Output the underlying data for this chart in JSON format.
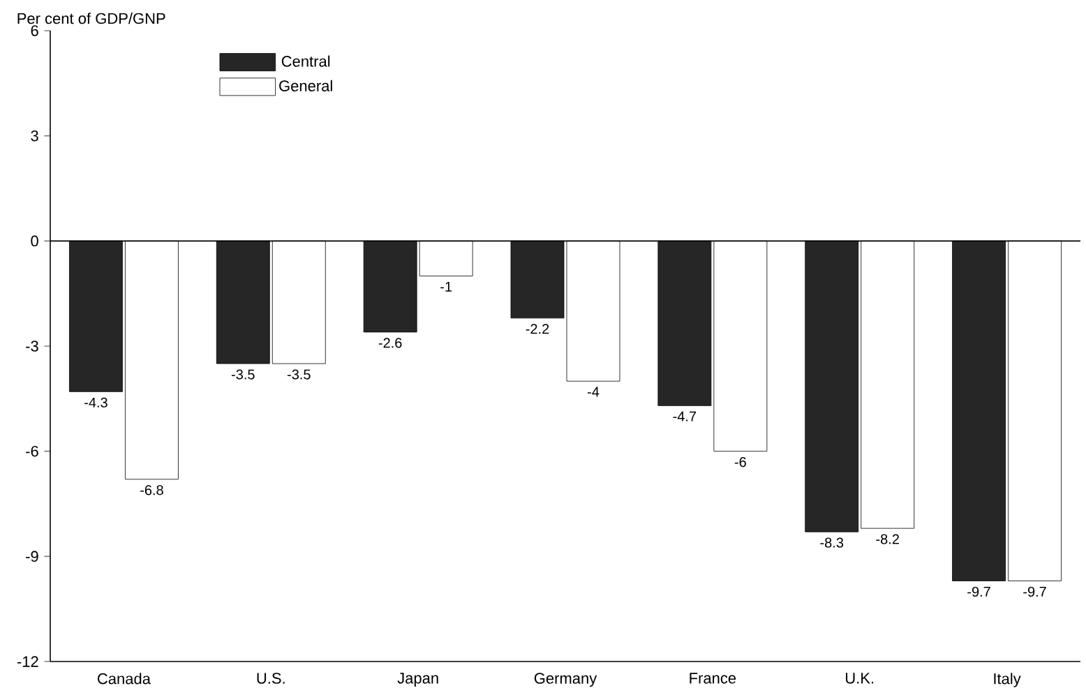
{
  "chart_data": {
    "type": "bar",
    "ylabel": "Per cent of GDP/GNP",
    "categories": [
      "Canada",
      "U.S.",
      "Japan",
      "Germany",
      "France",
      "U.K.",
      "Italy"
    ],
    "series": [
      {
        "name": "Central",
        "color": "#262626",
        "values": [
          -4.3,
          -3.5,
          -2.6,
          -2.2,
          -4.7,
          -8.3,
          -9.7
        ]
      },
      {
        "name": "General",
        "color": "#ffffff",
        "values": [
          -6.8,
          -3.5,
          -1,
          -4,
          -6,
          -8.2,
          -9.7
        ]
      }
    ],
    "ylim": [
      -12,
      6
    ],
    "yticks": [
      -12,
      -9,
      -6,
      -3,
      0,
      3,
      6
    ],
    "ref_lines": [
      {
        "axis": "y",
        "value": 0
      }
    ],
    "data_labels": true,
    "legend": "top left"
  }
}
